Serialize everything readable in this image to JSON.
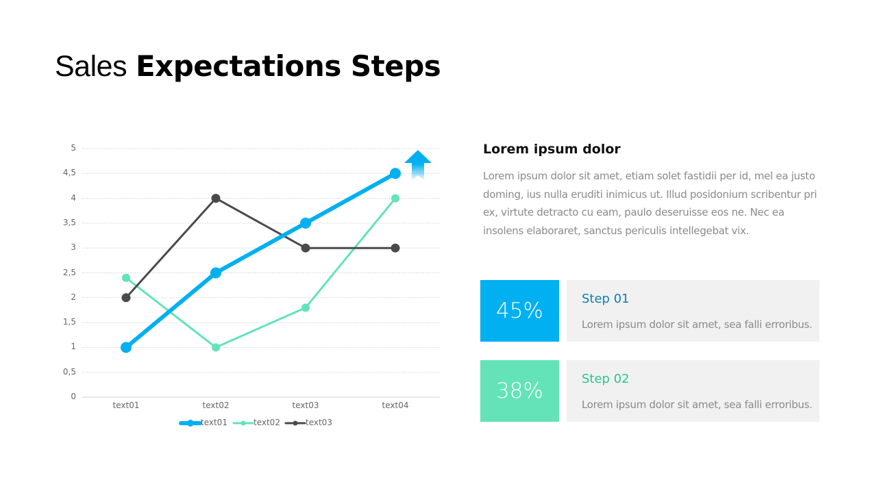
{
  "title": {
    "light": "Sales",
    "bold": "Expectations Steps"
  },
  "description": {
    "heading": "Lorem ipsum dolor",
    "body": "Lorem ipsum dolor sit amet, etiam solet fastidii per id, mel ea justo doming, ius nulla eruditi inimicus ut. Illud posidonium scribentur pri ex, virtute detracto cu eam, paulo deseruisse eos ne. Nec ea insolens elaboraret, sanctus periculis intellegebat vix."
  },
  "steps": [
    {
      "percent": "45%",
      "label": "Step 01",
      "text": "Lorem ipsum dolor sit amet, sea falli erroribus.",
      "color": "#00b0f0",
      "label_color": "#0e7fb0"
    },
    {
      "percent": "38%",
      "label": "Step 02",
      "text": "Lorem ipsum dolor sit amet, sea falli erroribus.",
      "color": "#63e3b7",
      "label_color": "#2ec48f"
    }
  ],
  "chart_data": {
    "type": "line",
    "title": "",
    "xlabel": "",
    "ylabel": "",
    "categories": [
      "text01",
      "text02",
      "text03",
      "text04"
    ],
    "series": [
      {
        "name": "text01",
        "values": [
          1,
          2.5,
          3.5,
          4.5
        ],
        "color": "#00b0f0"
      },
      {
        "name": "text02",
        "values": [
          2.4,
          1,
          1.8,
          4
        ],
        "color": "#63e3b7"
      },
      {
        "name": "text03",
        "values": [
          2,
          4,
          3,
          3
        ],
        "color": "#4a4a4a"
      }
    ],
    "yticks": [
      "0",
      "0,5",
      "1",
      "1,5",
      "2",
      "2,5",
      "3",
      "3,5",
      "4",
      "4,5",
      "5"
    ],
    "ylim": [
      0,
      5
    ],
    "grid": true,
    "legend_position": "bottom",
    "annotation": "up-arrow-icon"
  }
}
